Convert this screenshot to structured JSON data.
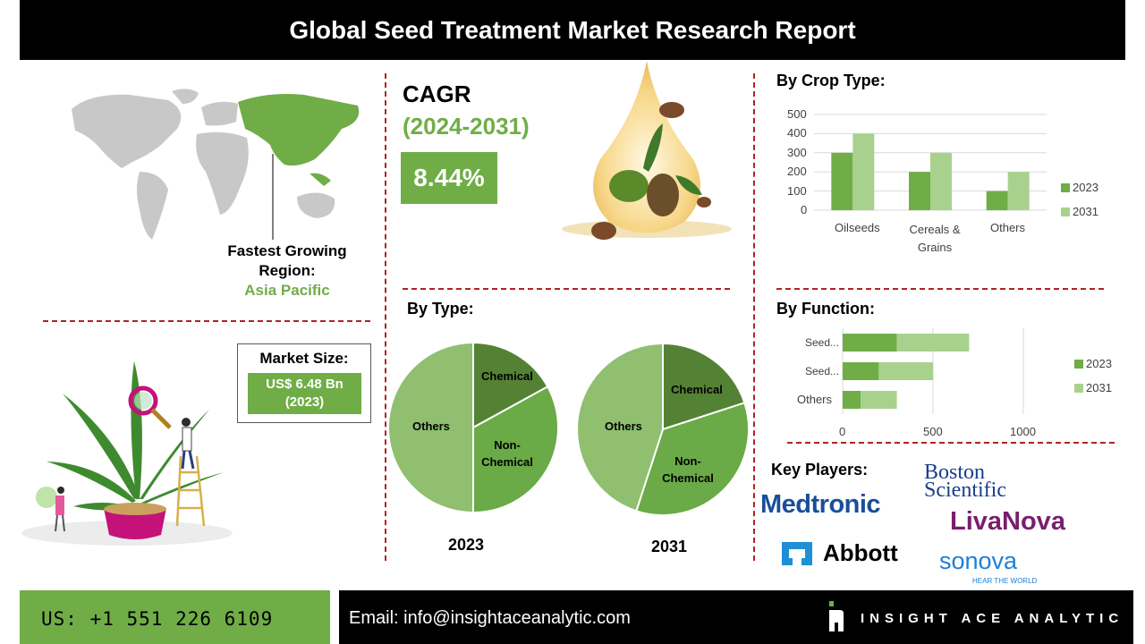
{
  "header": {
    "title": "Global Seed Treatment Market Research Report"
  },
  "region": {
    "label_line1": "Fastest Growing",
    "label_line2": "Region:",
    "value": "Asia Pacific"
  },
  "cagr": {
    "title": "CAGR",
    "period": "(2024-2031)",
    "value": "8.44%"
  },
  "market_size": {
    "label": "Market Size:",
    "value_line1": "US$ 6.48 Bn",
    "value_line2": "(2023)"
  },
  "by_type": {
    "heading": "By Type:",
    "labels": {
      "chemical": "Chemical",
      "non_chemical_1": "Non-",
      "non_chemical_2": "Chemical",
      "others": "Others"
    },
    "year_2023": "2023",
    "year_2031": "2031"
  },
  "by_crop": {
    "heading": "By Crop Type:",
    "y_ticks": [
      "500",
      "400",
      "300",
      "200",
      "100",
      "0"
    ],
    "categories": [
      "Oilseeds",
      "Cereals &",
      "Grains",
      "Others"
    ],
    "legend": [
      "2023",
      "2031"
    ]
  },
  "by_function": {
    "heading": "By Function:",
    "categories": [
      "Seed...",
      "Seed...",
      "Others"
    ],
    "x_ticks": [
      "0",
      "500",
      "1000"
    ],
    "legend": [
      "2023",
      "2031"
    ]
  },
  "key_players": {
    "heading": "Key Players:",
    "logos": {
      "medtronic": "Medtronic",
      "boston_1": "Boston",
      "boston_2": "Scientific",
      "livanova": "LivaNova",
      "abbott": "Abbott",
      "sonova": "sonova",
      "sonova_tag": "HEAR THE WORLD"
    }
  },
  "footer": {
    "phone": "US: +1 551 226 6109",
    "email": "Email: info@insightaceanalytic.com",
    "brand": "INSIGHT ACE ANALYTIC"
  },
  "colors": {
    "dark_green": "#70ad47",
    "light_green": "#a9d18e",
    "mid_green": "#6aaa47",
    "divider_red": "#b22222"
  },
  "chart_data": [
    {
      "type": "bar",
      "title": "By Crop Type:",
      "categories": [
        "Oilseeds",
        "Cereals & Grains",
        "Others"
      ],
      "series": [
        {
          "name": "2023",
          "values": [
            300,
            200,
            100
          ]
        },
        {
          "name": "2031",
          "values": [
            400,
            300,
            200
          ]
        }
      ],
      "ylim": [
        0,
        500
      ],
      "grid": true,
      "legend": "right"
    },
    {
      "type": "bar",
      "orientation": "horizontal",
      "title": "By Function:",
      "categories": [
        "Seed...",
        "Seed...",
        "Others"
      ],
      "series": [
        {
          "name": "2023",
          "values": [
            300,
            200,
            100
          ]
        },
        {
          "name": "2031",
          "values": [
            400,
            300,
            200
          ]
        }
      ],
      "xlim": [
        0,
        1000
      ],
      "stacked": true,
      "legend": "right"
    },
    {
      "type": "pie",
      "label": "2023",
      "slices": [
        {
          "name": "Chemical",
          "value": 17
        },
        {
          "name": "Non-Chemical",
          "value": 33
        },
        {
          "name": "Others",
          "value": 50
        }
      ]
    },
    {
      "type": "pie",
      "label": "2031",
      "slices": [
        {
          "name": "Chemical",
          "value": 20
        },
        {
          "name": "Non-Chemical",
          "value": 35
        },
        {
          "name": "Others",
          "value": 45
        }
      ]
    }
  ]
}
